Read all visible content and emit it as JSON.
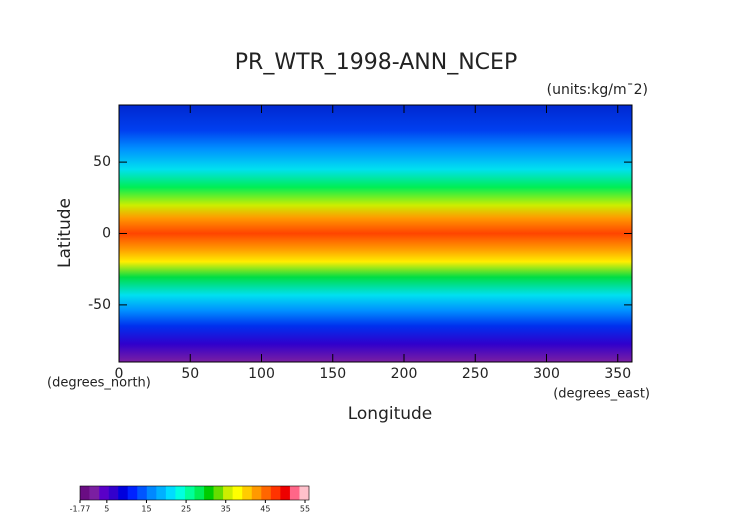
{
  "chart_data": {
    "type": "contour_map",
    "title": "PR_WTR_1998-ANN_NCEP",
    "subtitle": "(units:kg/m¯2)",
    "x_label": "Longitude",
    "x_units": "(degrees_east)",
    "y_label": "Latitude",
    "y_units": "(degrees_north)",
    "xlim": [
      0,
      360
    ],
    "ylim": [
      -90,
      90
    ],
    "xticks": [
      0,
      50,
      100,
      150,
      200,
      250,
      300,
      350
    ],
    "yticks": [
      -50,
      0,
      50
    ],
    "colorbar": {
      "ticks": [
        -1.77,
        5,
        15,
        25,
        35,
        45,
        55
      ],
      "colors": [
        "#6a0d83",
        "#7b1fa2",
        "#5a00c8",
        "#3300cc",
        "#0000dd",
        "#0022ff",
        "#0055ff",
        "#0088ff",
        "#00b0ff",
        "#00dcff",
        "#00ffe0",
        "#00ff99",
        "#00ee55",
        "#00cc00",
        "#66dd00",
        "#ccee00",
        "#ffff00",
        "#ffcc00",
        "#ff9900",
        "#ff6600",
        "#ff3300",
        "#ee0000",
        "#ff6688",
        "#ffc0cb"
      ]
    }
  }
}
